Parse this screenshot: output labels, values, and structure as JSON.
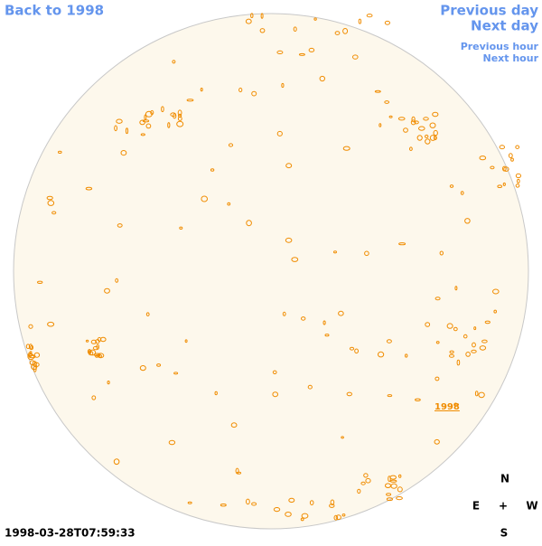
{
  "navigation": {
    "back": "Back to 1998",
    "previous_day": "Previous day",
    "next_day": "Next day",
    "previous_hour": "Previous hour",
    "next_hour": "Next hour"
  },
  "disk_label": "1998",
  "compass": {
    "north": "N",
    "east": "E",
    "center": "+",
    "west": "W",
    "south": "S"
  },
  "timestamp": "1998-03-28T07:59:33"
}
